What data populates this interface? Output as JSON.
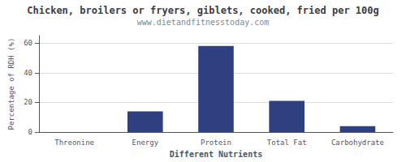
{
  "chart_data": {
    "type": "bar",
    "title": "Chicken, broilers or fryers, giblets, cooked, fried per 100g",
    "subtitle": "www.dietandfitnesstoday.com",
    "xlabel": "Different Nutrients",
    "ylabel": "Percentage of RDH (%)",
    "categories": [
      "Threonine",
      "Energy",
      "Protein",
      "Total Fat",
      "Carbohydrate"
    ],
    "values": [
      0,
      14,
      58,
      21,
      4
    ],
    "color": "#2e4080",
    "ylim": [
      0,
      65
    ],
    "yticks": [
      0,
      20,
      40,
      60
    ],
    "grid": true
  }
}
